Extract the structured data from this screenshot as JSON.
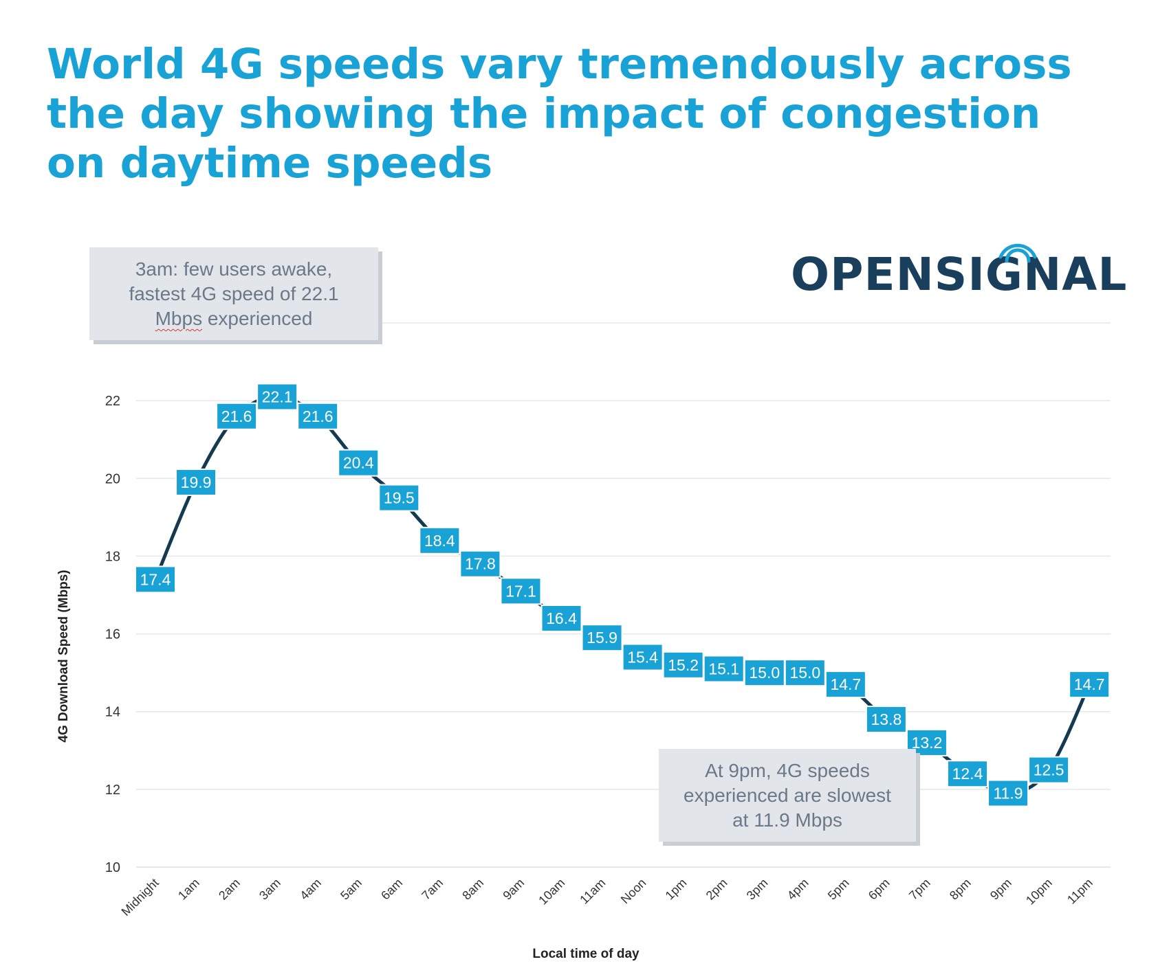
{
  "title": {
    "line1": "World 4G speeds vary tremendously across",
    "line2": "the day showing the impact of congestion",
    "line3": "on daytime speeds"
  },
  "brand": {
    "wordmark": "OPENSIGNAL",
    "color": "#1a3f5c",
    "accent": "#18a2d6"
  },
  "callouts": {
    "peak": {
      "line1": "3am: few users awake,",
      "line2": "fastest 4G speed of 22.1",
      "line3_a": "Mbps",
      "line3_b": " experienced"
    },
    "trough": {
      "line1": "At 9pm, 4G speeds",
      "line2": "experienced are slowest",
      "line3": "at 11.9 Mbps"
    }
  },
  "chart_data": {
    "type": "line",
    "x": [
      "Midnight",
      "1am",
      "2am",
      "3am",
      "4am",
      "5am",
      "6am",
      "7am",
      "8am",
      "9am",
      "10am",
      "11am",
      "Noon",
      "1pm",
      "2pm",
      "3pm",
      "4pm",
      "5pm",
      "6pm",
      "7pm",
      "8pm",
      "9pm",
      "10pm",
      "11pm"
    ],
    "series": [
      {
        "values": [
          17.4,
          19.9,
          21.6,
          22.1,
          21.6,
          20.4,
          19.5,
          18.4,
          17.8,
          17.1,
          16.4,
          15.9,
          15.4,
          15.2,
          15.1,
          15.0,
          15.0,
          14.7,
          13.8,
          13.2,
          12.4,
          11.9,
          12.5,
          14.7
        ],
        "labels": [
          "17.4",
          "19.9",
          "21.6",
          "22.1",
          "21.6",
          "20.4",
          "19.5",
          "18.4",
          "17.8",
          "17.1",
          "16.4",
          "15.9",
          "15.4",
          "15.2",
          "15.1",
          "15.0",
          "15.0",
          "14.7",
          "13.8",
          "13.2",
          "12.4",
          "11.9",
          "12.5",
          "14.7"
        ]
      }
    ],
    "xlabel": "Local time of day",
    "ylabel": "4G Download Speed (Mbps)",
    "ylim": [
      10,
      24
    ],
    "yticks": [
      10,
      12,
      14,
      16,
      18,
      20,
      22
    ],
    "grid": true,
    "legend": "none",
    "line_color": "#143a52",
    "label_bg": "#18a2d6",
    "label_text": "#ffffff",
    "grid_color": "#e3e8ec",
    "tick_color": "#333333"
  }
}
